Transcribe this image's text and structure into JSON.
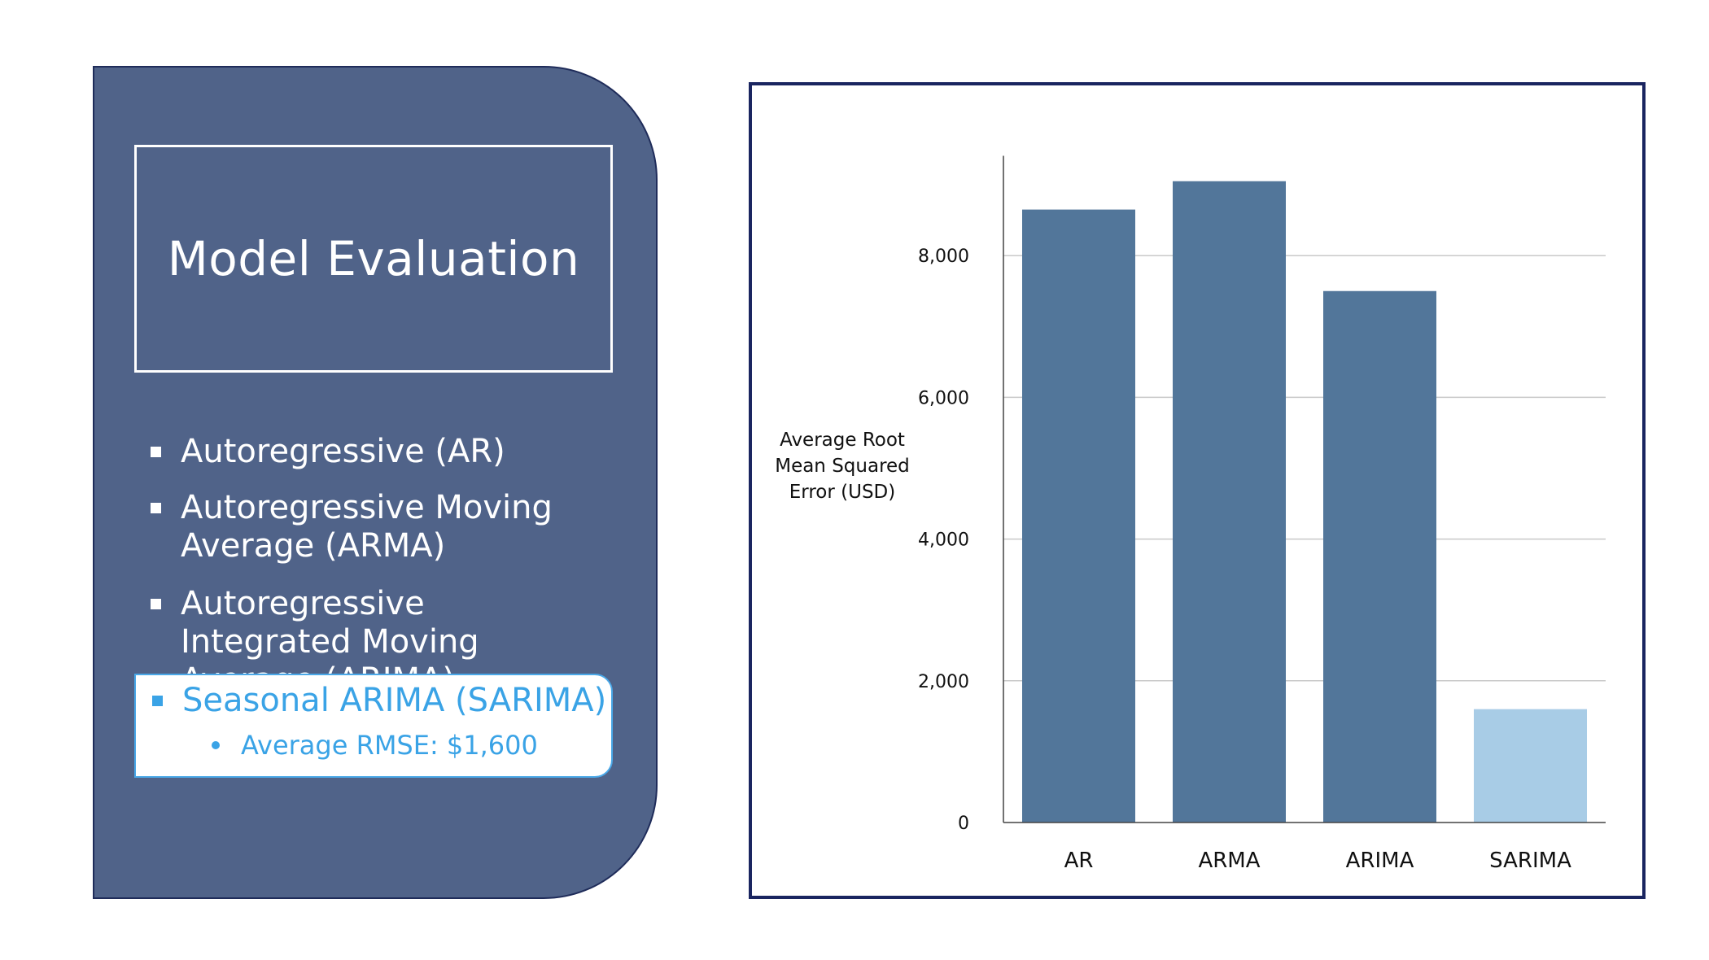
{
  "panel": {
    "title": "Model Evaluation",
    "bullets": [
      "Autoregressive (AR)",
      "Autoregressive Moving Average (ARMA)",
      "Autoregressive Integrated Moving Average (ARIMA)"
    ],
    "highlight": {
      "bullet": "Seasonal ARIMA (SARIMA)",
      "sub_bullet": "Average RMSE:  $1,600"
    }
  },
  "colors": {
    "panel_bg": "#506389",
    "bar_default": "#52769a",
    "bar_highlight": "#a8cce6",
    "highlight_text": "#3aa3e6",
    "frame_border": "#1a2560"
  },
  "chart_data": {
    "type": "bar",
    "categories": [
      "AR",
      "ARMA",
      "ARIMA",
      "SARIMA"
    ],
    "values": [
      8650,
      9050,
      7500,
      1600
    ],
    "highlighted_category": "SARIMA",
    "yticks": [
      "0",
      "2,000",
      "4,000",
      "6,000",
      "8,000"
    ],
    "ytick_values": [
      0,
      2000,
      4000,
      6000,
      8000
    ],
    "ylabel": "Average Root Mean Squared Error (USD)",
    "xlabel": "",
    "ylim": [
      0,
      9500
    ],
    "grid": true,
    "legend": "none"
  }
}
